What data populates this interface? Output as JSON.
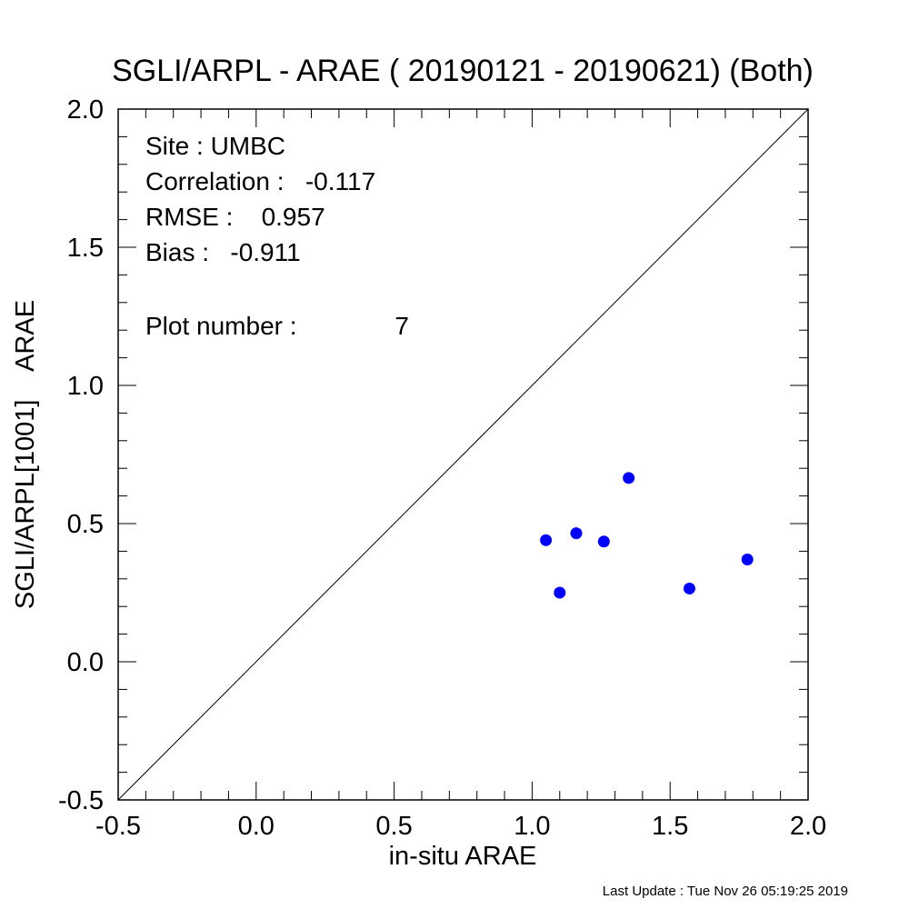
{
  "chart_data": {
    "type": "scatter",
    "title": "SGLI/ARPL - ARAE ( 20190121 - 20190621) (Both)",
    "xlabel": "in-situ ARAE",
    "ylabel": "SGLI/ARPL[1001]    ARAE",
    "xlim": [
      -0.5,
      2.0
    ],
    "ylim": [
      -0.5,
      2.0
    ],
    "x_ticks": [
      "-0.5",
      "0.0",
      "0.5",
      "1.0",
      "1.5",
      "2.0"
    ],
    "y_ticks": [
      "-0.5",
      "0.0",
      "0.5",
      "1.0",
      "1.5",
      "2.0"
    ],
    "grid": false,
    "one_to_one_line": true,
    "point_color": "#0000ff",
    "points": [
      {
        "x": 1.05,
        "y": 0.44
      },
      {
        "x": 1.1,
        "y": 0.25
      },
      {
        "x": 1.16,
        "y": 0.465
      },
      {
        "x": 1.26,
        "y": 0.435
      },
      {
        "x": 1.35,
        "y": 0.665
      },
      {
        "x": 1.57,
        "y": 0.265
      },
      {
        "x": 1.78,
        "y": 0.37
      }
    ],
    "annotations": {
      "site": "Site : UMBC",
      "correlation": "Correlation :   -0.117",
      "rmse": "RMSE :    0.957",
      "bias": "Bias :   -0.911",
      "plot_number_label": "Plot number :",
      "plot_number_value": "7"
    }
  },
  "footer": {
    "last_update": "Last Update : Tue Nov 26 05:19:25 2019"
  }
}
